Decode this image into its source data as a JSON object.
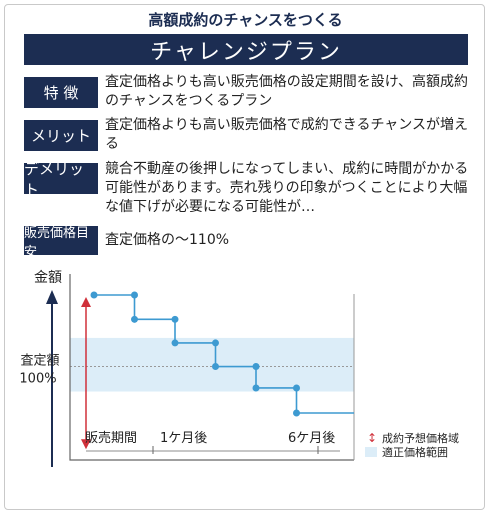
{
  "heading": "高額成約のチャンスをつくる",
  "plan_name": "チャレンジプラン",
  "rows": [
    {
      "tag": "特 徴",
      "text": "査定価格よりも高い販売価格の設定期間を設け、高額成約のチャンスをつくるプラン"
    },
    {
      "tag": "メリット",
      "text": "査定価格よりも高い販売価格で成約できるチャンスが増える"
    },
    {
      "tag": "デメリット",
      "text": "競合不動産の後押しになってしまい、成約に時間がかかる可能性があります。売れ残りの印象がつくことにより大幅な値下げが必要になる可能性が…"
    },
    {
      "tag": "販売価格目安",
      "text": "査定価格の～110%"
    }
  ],
  "chart_data": {
    "type": "line",
    "ylabel": "金額",
    "y_reference_label_1": "査定額",
    "y_reference_label_2": "100%",
    "x_tick_labels": [
      "販売期間",
      "1ケ月後",
      "6ケ月後"
    ],
    "series": [
      {
        "x": [
          0,
          1,
          1,
          2,
          2,
          3,
          3,
          4,
          4,
          5,
          5,
          6
        ],
        "y": [
          1.1,
          1.1,
          1.066,
          1.066,
          1.033,
          1.033,
          1.0,
          1.0,
          0.97,
          0.97,
          0.935,
          0.935
        ]
      }
    ],
    "expected_range_band": [
      0.915,
      1.1
    ],
    "appropriate_range_band": [
      0.965,
      1.04
    ],
    "legend": [
      {
        "label": "成約予想価格域",
        "symbol": "↕",
        "color": "#d0303a"
      },
      {
        "label": "適正価格範囲",
        "symbol": "box",
        "color": "#dcedf8"
      }
    ],
    "colors": {
      "line": "#3d9ad1",
      "arrow": "#d0303a",
      "band": "#dcedf8",
      "text": "#222222"
    }
  }
}
